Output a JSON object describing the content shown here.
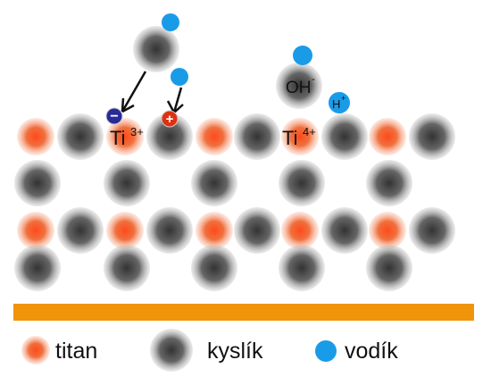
{
  "labels": {
    "ti3": {
      "symbol": "Ti",
      "charge": "3+"
    },
    "ti4": {
      "symbol": "Ti",
      "charge": "4+"
    },
    "hydroxide": {
      "symbol": "OH",
      "charge": "-"
    },
    "proton": {
      "symbol": "H",
      "charge": "+"
    },
    "electron": "−",
    "hole": "+"
  },
  "legend": [
    {
      "label": "titan"
    },
    {
      "label": "kyslík"
    },
    {
      "label": "vodík"
    }
  ]
}
